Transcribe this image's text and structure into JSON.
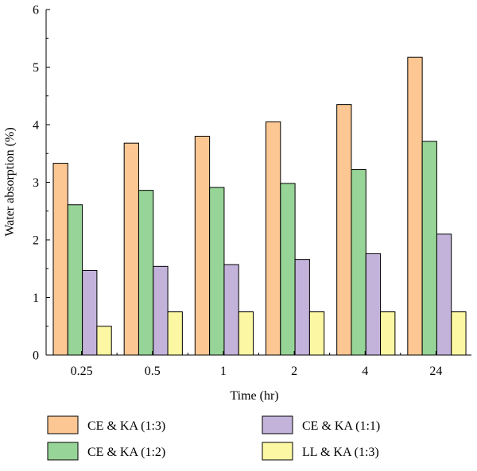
{
  "chart_data": {
    "type": "bar",
    "xlabel": "Time (hr)",
    "ylabel": "Water absorption (%)",
    "ylim": [
      0,
      6
    ],
    "yticks": [
      0,
      1,
      2,
      3,
      4,
      5,
      6
    ],
    "categories": [
      "0.25",
      "0.5",
      "1",
      "2",
      "4",
      "24"
    ],
    "legend_position": "bottom",
    "series": [
      {
        "name": "CE & KA (1:3)",
        "color": "#FDC793",
        "values": [
          3.33,
          3.68,
          3.8,
          4.05,
          4.35,
          5.17
        ]
      },
      {
        "name": "CE & KA (1:2)",
        "color": "#97D497",
        "values": [
          2.61,
          2.86,
          2.91,
          2.98,
          3.22,
          3.71
        ]
      },
      {
        "name": "CE & KA (1:1)",
        "color": "#C3B3DB",
        "values": [
          1.47,
          1.54,
          1.57,
          1.66,
          1.76,
          2.1
        ]
      },
      {
        "name": "LL & KA (1:3)",
        "color": "#FBF7A2",
        "values": [
          0.5,
          0.75,
          0.75,
          0.75,
          0.75,
          0.75
        ]
      }
    ]
  }
}
